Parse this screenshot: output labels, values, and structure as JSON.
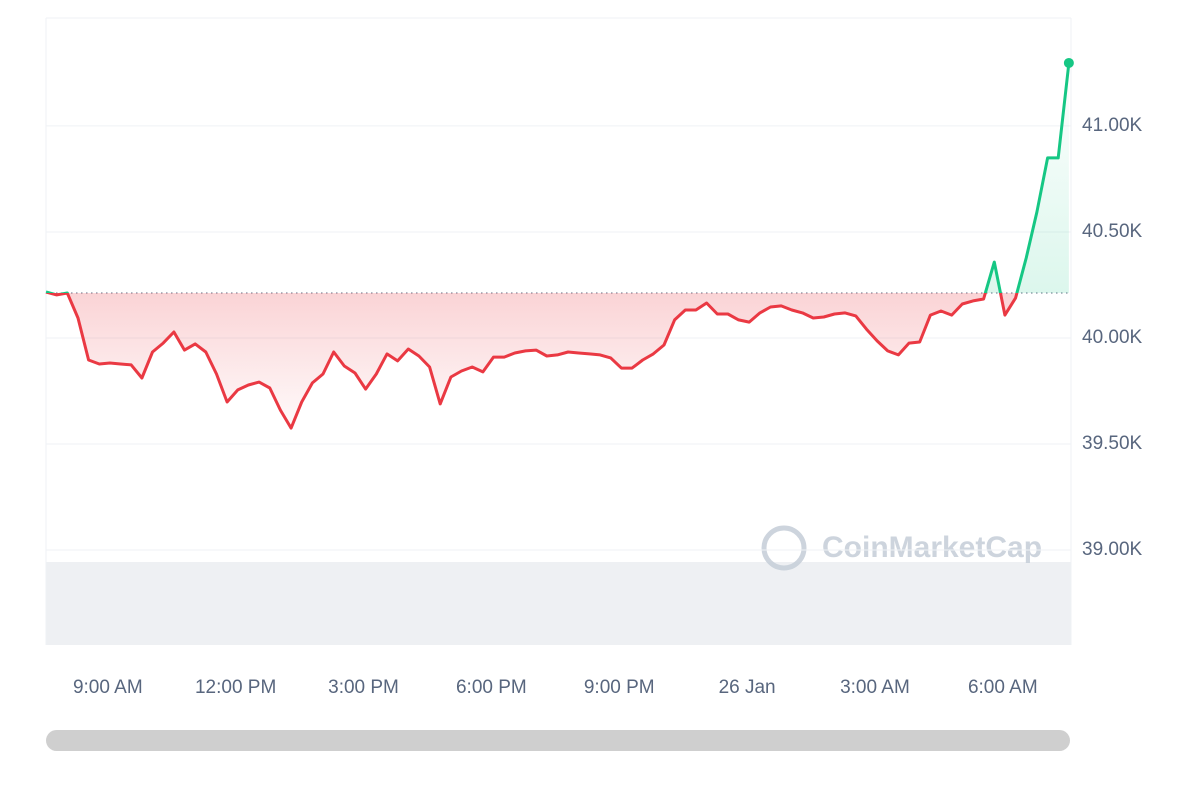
{
  "chart_data": {
    "type": "line",
    "watermark": "CoinMarketCap",
    "x": [
      7.55,
      7.8,
      8.05,
      8.3,
      8.55,
      8.8,
      9.05,
      9.3,
      9.55,
      9.8,
      10.05,
      10.3,
      10.55,
      10.8,
      11.05,
      11.3,
      11.55,
      11.8,
      12.05,
      12.3,
      12.55,
      12.8,
      13.05,
      13.3,
      13.55,
      13.8,
      14.05,
      14.3,
      14.55,
      14.8,
      15.05,
      15.3,
      15.55,
      15.8,
      16.05,
      16.3,
      16.55,
      16.8,
      17.05,
      17.3,
      17.55,
      17.8,
      18.05,
      18.3,
      18.55,
      18.8,
      19.05,
      19.3,
      19.55,
      19.8,
      20.05,
      20.3,
      20.55,
      20.8,
      21.05,
      21.3,
      21.55,
      21.8,
      22.05,
      22.3,
      22.55,
      22.8,
      23.05,
      23.3,
      23.55,
      23.8,
      24.05,
      24.3,
      24.55,
      24.8,
      25.05,
      25.3,
      25.55,
      25.8,
      26.05,
      26.3,
      26.55,
      26.8,
      27.05,
      27.3,
      27.55,
      27.8,
      28.05,
      28.3,
      28.55,
      28.8,
      29.05,
      29.3,
      29.55,
      29.8,
      30.05,
      30.3,
      30.55,
      30.8,
      31.05,
      31.3,
      31.55
    ],
    "values": [
      40217,
      40203,
      40212,
      40094,
      39896,
      39877,
      39882,
      39877,
      39873,
      39811,
      39934,
      39976,
      40028,
      39943,
      39972,
      39934,
      39830,
      39698,
      39755,
      39778,
      39792,
      39764,
      39660,
      39575,
      39698,
      39788,
      39830,
      39934,
      39868,
      39835,
      39759,
      39830,
      39925,
      39892,
      39948,
      39915,
      39863,
      39689,
      39816,
      39844,
      39863,
      39840,
      39910,
      39910,
      39929,
      39939,
      39943,
      39915,
      39920,
      39934,
      39929,
      39925,
      39920,
      39906,
      39858,
      39858,
      39896,
      39925,
      39967,
      40085,
      40132,
      40132,
      40165,
      40113,
      40113,
      40085,
      40075,
      40118,
      40146,
      40151,
      40132,
      40118,
      40094,
      40099,
      40113,
      40118,
      40104,
      40042,
      39986,
      39939,
      39920,
      39976,
      39981,
      40108,
      40127,
      40108,
      40160,
      40175,
      40184,
      40358,
      40108,
      40189,
      40377,
      40594,
      40849,
      40849,
      41297
    ],
    "baseline": 40212,
    "color_up": "#16c784",
    "color_down": "#ea3943",
    "xlim": [
      7.55,
      31.6
    ],
    "xticks": [
      {
        "value": 9,
        "label": "9:00 AM"
      },
      {
        "value": 12,
        "label": "12:00 PM"
      },
      {
        "value": 15,
        "label": "3:00 PM"
      },
      {
        "value": 18,
        "label": "6:00 PM"
      },
      {
        "value": 21,
        "label": "9:00 PM"
      },
      {
        "value": 24,
        "label": "26 Jan"
      },
      {
        "value": 27,
        "label": "3:00 AM"
      },
      {
        "value": 30,
        "label": "6:00 AM"
      }
    ],
    "ylim": [
      38552,
      41509
    ],
    "yticks": [
      {
        "value": 39000,
        "label": "39.00K"
      },
      {
        "value": 39500,
        "label": "39.50K"
      },
      {
        "value": 40000,
        "label": "40.00K"
      },
      {
        "value": 40500,
        "label": "40.50K"
      },
      {
        "value": 41000,
        "label": "41.00K"
      }
    ],
    "grid": true
  }
}
